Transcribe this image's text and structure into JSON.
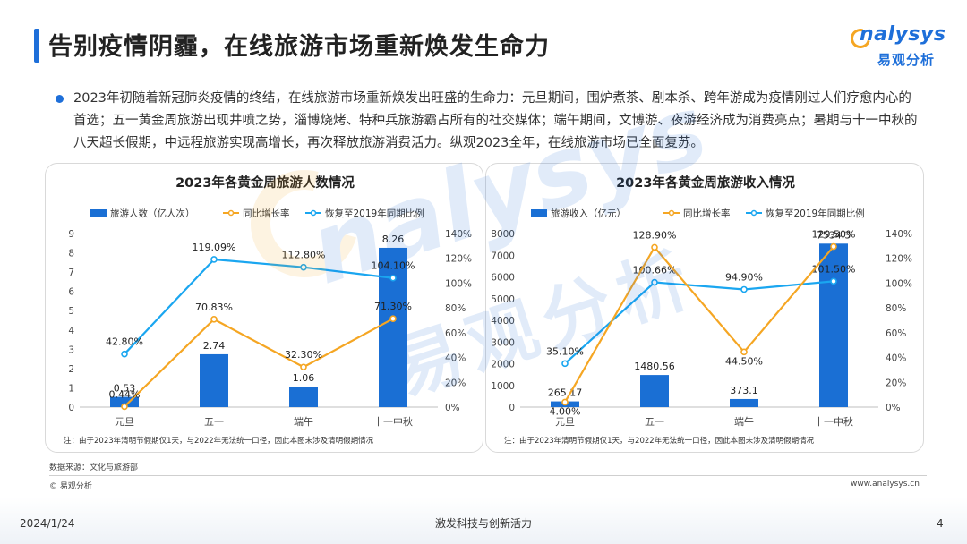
{
  "page": {
    "title": "告别疫情阴霾，在线旅游市场重新焕发生命力",
    "intro": "2023年初随着新冠肺炎疫情的终结，在线旅游市场重新焕发出旺盛的生命力：元旦期间，围炉煮茶、剧本杀、跨年游成为疫情刚过人们疗愈内心的首选；五一黄金周旅游出现井喷之势，淄博烧烤、特种兵旅游霸占所有的社交媒体；端午期间，文博游、夜游经济成为消费亮点；暑期与十一中秋的八天超长假期，中远程旅游实现高增长，再次释放旅游消费活力。纵观2023全年，在线旅游市场已全面复苏。",
    "source": "数据来源：文化与旅游部",
    "copyright": "© 易观分析",
    "website": "www.analysys.cn",
    "footer_date": "2024/1/24",
    "footer_center": "激发科技与创新活力",
    "page_number": "4"
  },
  "logo": {
    "word": "nalysys",
    "cn": "易观分析"
  },
  "watermark": {
    "word": "nalysys",
    "cn": "易观分析"
  },
  "colors": {
    "bar": "#1a6fd4",
    "growth": "#f5a623",
    "recovery": "#1aa6f0",
    "title_accent": "#1e6fd9"
  },
  "chart_data": [
    {
      "type": "bar",
      "title": "2023年各黄金周旅游人数情况",
      "categories": [
        "元旦",
        "五一",
        "端午",
        "十一中秋"
      ],
      "series": [
        {
          "name": "旅游人数（亿人次）",
          "type": "bar",
          "axis": "left",
          "values": [
            0.53,
            2.74,
            1.06,
            8.26
          ],
          "labels": [
            "0.53",
            "2.74",
            "1.06",
            "8.26"
          ]
        },
        {
          "name": "同比增长率",
          "type": "line",
          "axis": "right",
          "values": [
            0.44,
            70.83,
            32.3,
            71.3
          ],
          "labels": [
            "0.44%",
            "70.83%",
            "32.30%",
            "71.30%"
          ]
        },
        {
          "name": "恢复至2019年同期比例",
          "type": "line",
          "axis": "right",
          "values": [
            42.8,
            119.09,
            112.8,
            104.1
          ],
          "labels": [
            "42.80%",
            "119.09%",
            "112.80%",
            "104.10%"
          ]
        }
      ],
      "left_axis": {
        "min": 0,
        "max": 9,
        "ticks": [
          "0",
          "1",
          "2",
          "3",
          "4",
          "5",
          "6",
          "7",
          "8",
          "9"
        ]
      },
      "right_axis": {
        "min": 0,
        "max": 140,
        "ticks": [
          "0%",
          "20%",
          "40%",
          "60%",
          "80%",
          "100%",
          "120%",
          "140%"
        ]
      },
      "legend_position": "top",
      "grid": false,
      "note": "注：由于2023年清明节假期仅1天，与2022年无法统一口径，因此本图未涉及清明假期情况"
    },
    {
      "type": "bar",
      "title": "2023年各黄金周旅游收入情况",
      "categories": [
        "元旦",
        "五一",
        "端午",
        "十一中秋"
      ],
      "series": [
        {
          "name": "旅游收入（亿元）",
          "type": "bar",
          "axis": "left",
          "values": [
            265.17,
            1480.56,
            373.1,
            7534.3
          ],
          "labels": [
            "265.17",
            "1480.56",
            "373.1",
            "7534.3"
          ]
        },
        {
          "name": "同比增长率",
          "type": "line",
          "axis": "right",
          "values": [
            4.0,
            128.9,
            44.5,
            129.5
          ],
          "labels": [
            "4.00%",
            "128.90%",
            "44.50%",
            "129.50%"
          ]
        },
        {
          "name": "恢复至2019年同期比例",
          "type": "line",
          "axis": "right",
          "values": [
            35.1,
            100.66,
            94.9,
            101.5
          ],
          "labels": [
            "35.10%",
            "100.66%",
            "94.90%",
            "101.50%"
          ]
        }
      ],
      "left_axis": {
        "min": 0,
        "max": 8000,
        "ticks": [
          "0",
          "1000",
          "2000",
          "3000",
          "4000",
          "5000",
          "6000",
          "7000",
          "8000"
        ]
      },
      "right_axis": {
        "min": 0,
        "max": 140,
        "ticks": [
          "0%",
          "20%",
          "40%",
          "60%",
          "80%",
          "100%",
          "120%",
          "140%"
        ]
      },
      "legend_position": "top",
      "grid": false,
      "note": "注：由于2023年清明节假期仅1天，与2022年无法统一口径，因此本图未涉及清明假期情况"
    }
  ]
}
